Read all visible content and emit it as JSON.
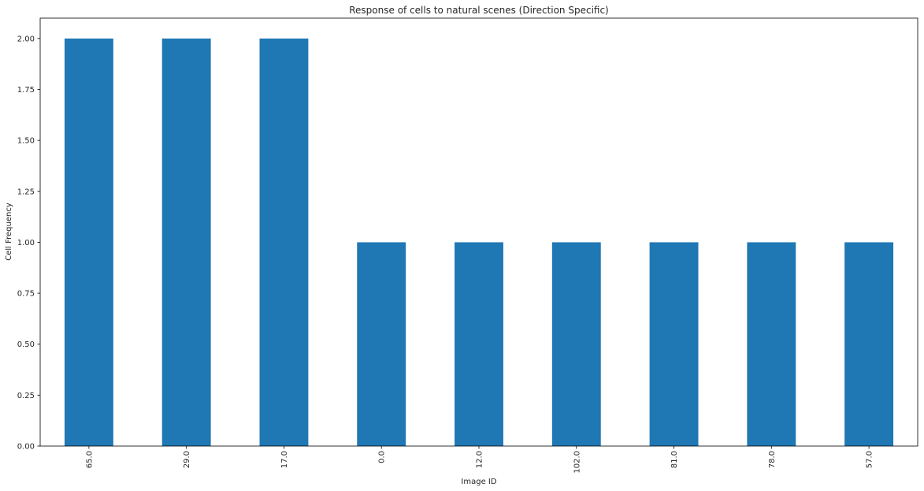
{
  "chart_data": {
    "type": "bar",
    "title": "Response of cells to natural scenes (Direction Specific)",
    "xlabel": "Image ID",
    "ylabel": "Cell Frequency",
    "categories": [
      "65.0",
      "29.0",
      "17.0",
      "0.0",
      "12.0",
      "102.0",
      "81.0",
      "78.0",
      "57.0"
    ],
    "values": [
      2,
      2,
      2,
      1,
      1,
      1,
      1,
      1,
      1
    ],
    "ylim": [
      0,
      2.1
    ],
    "yticks": [
      "0.00",
      "0.25",
      "0.50",
      "0.75",
      "1.00",
      "1.25",
      "1.50",
      "1.75",
      "2.00"
    ],
    "bar_color": "#1f77b4",
    "grid": false,
    "legend": "none"
  }
}
